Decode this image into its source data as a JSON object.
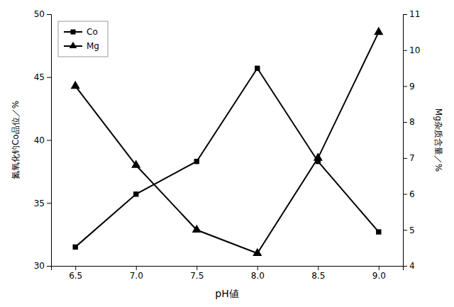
{
  "chart_data": {
    "type": "line",
    "xlabel": "pH値",
    "ylabel": "氮氧化钓Co品位／%",
    "y2label": "Mg杂质含量／%",
    "x": [
      6.5,
      7.0,
      7.5,
      8.0,
      8.5,
      9.0
    ],
    "series": [
      {
        "name": "Co",
        "color": "#000000",
        "marker": "square",
        "values": [
          31.5,
          35.7,
          38.3,
          45.7,
          38.3,
          32.7
        ]
      },
      {
        "name": "Mg",
        "color": "#000000",
        "marker": "triangle",
        "axis": "y2",
        "values": [
          9.0,
          6.8,
          5.0,
          4.35,
          7.0,
          10.5
        ]
      }
    ],
    "xlim": [
      6.3,
      9.2
    ],
    "xticks": [
      6.5,
      {
        "value": 7.0,
        "label": "7.0"
      },
      7.5,
      {
        "value": 8.0,
        "label": "8.0"
      },
      8.5,
      {
        "value": 9.0,
        "label": "9.0"
      }
    ],
    "ylim": [
      30,
      50
    ],
    "yticks": [
      30,
      35,
      40,
      45,
      50
    ],
    "y2lim": [
      4,
      11
    ],
    "y2ticks": [
      4,
      5,
      6,
      7,
      8,
      9,
      10,
      11
    ],
    "legend": "top-left",
    "grid": false
  }
}
